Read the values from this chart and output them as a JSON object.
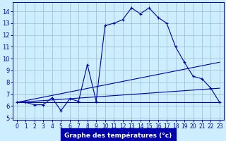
{
  "title": "Graphe des températures (°c)",
  "bg_color": "#cceeff",
  "grid_color": "#99bbcc",
  "line_color": "#0000aa",
  "line1": {
    "x": [
      0,
      1,
      2,
      3,
      4,
      5,
      6,
      7,
      8,
      9,
      10,
      11,
      12,
      13,
      14,
      15,
      16,
      17,
      18,
      19,
      20,
      21,
      22,
      23
    ],
    "y": [
      6.3,
      6.3,
      6.1,
      6.1,
      6.7,
      5.6,
      6.6,
      6.4,
      9.5,
      6.4,
      12.8,
      13.0,
      13.3,
      14.3,
      13.8,
      14.3,
      13.5,
      13.0,
      11.0,
      9.7,
      8.5,
      8.3,
      7.5,
      6.3
    ]
  },
  "line2": {
    "x": [
      0,
      23
    ],
    "y": [
      6.3,
      6.3
    ]
  },
  "line3": {
    "x": [
      0,
      23
    ],
    "y": [
      6.3,
      9.7
    ]
  },
  "line4": {
    "x": [
      0,
      23
    ],
    "y": [
      6.3,
      7.5
    ]
  },
  "xlim": [
    -0.5,
    23.5
  ],
  "ylim": [
    4.8,
    14.8
  ],
  "yticks": [
    5,
    6,
    7,
    8,
    9,
    10,
    11,
    12,
    13,
    14
  ],
  "xticks": [
    0,
    1,
    2,
    3,
    4,
    5,
    6,
    7,
    8,
    9,
    10,
    11,
    12,
    13,
    14,
    15,
    16,
    17,
    18,
    19,
    20,
    21,
    22,
    23
  ]
}
